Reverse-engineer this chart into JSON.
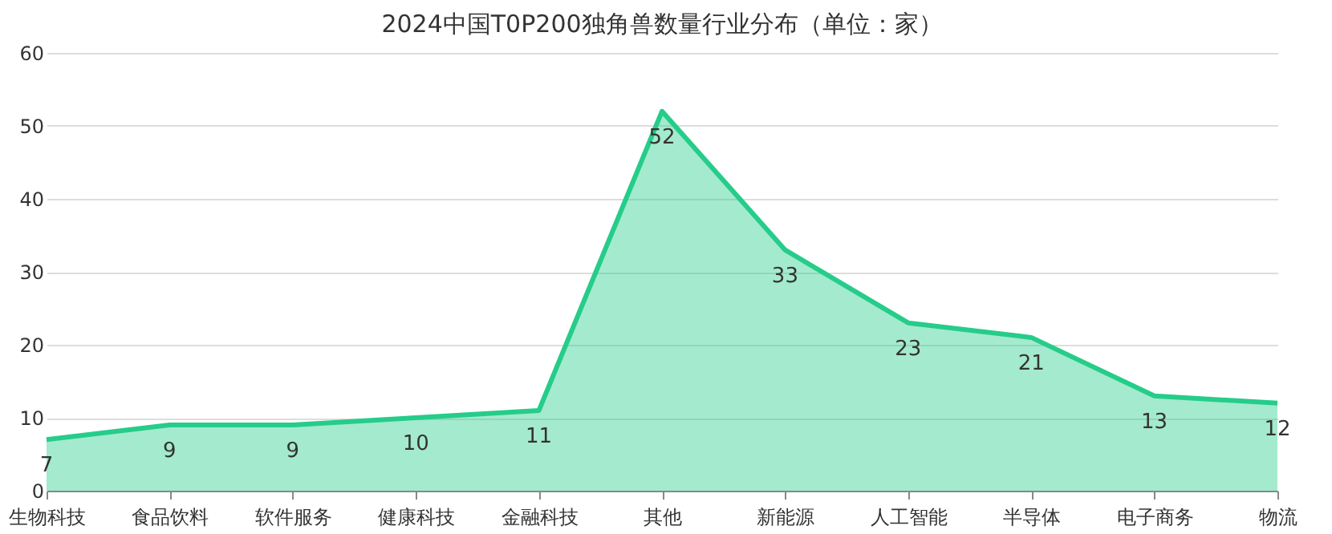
{
  "chart_data": {
    "type": "area",
    "title": "2024中国T0P200独角兽数量行业分布（单位：家）",
    "categories": [
      "生物科技",
      "食品饮料",
      "软件服务",
      "健康科技",
      "金融科技",
      "其他",
      "新能源",
      "人工智能",
      "半导体",
      "电子商务",
      "物流"
    ],
    "series": [
      {
        "color": "#26cc8a",
        "values": [
          7,
          9,
          9,
          10,
          11,
          52,
          33,
          23,
          21,
          13,
          12
        ]
      }
    ],
    "ylim": [
      0,
      60
    ],
    "yticks": [
      0,
      10,
      20,
      30,
      40,
      50,
      60
    ],
    "grid": "y",
    "data_labels": true
  }
}
